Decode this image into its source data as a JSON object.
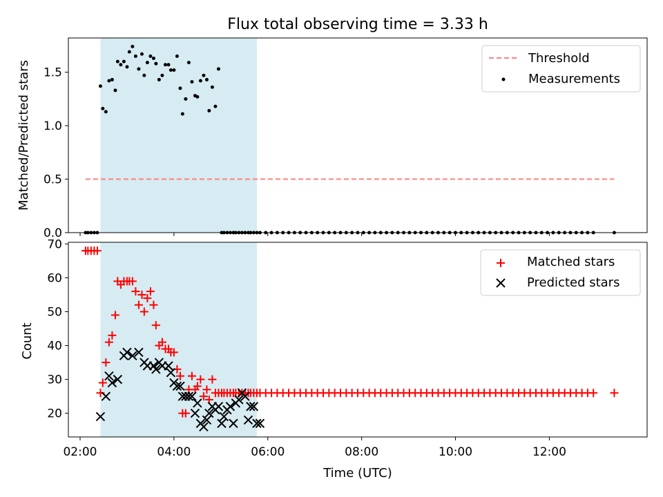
{
  "chart_data": [
    {
      "type": "scatter",
      "title": "Flux total observing time = 3.33 h",
      "xlabel": "",
      "ylabel": "Matched/Predicted stars",
      "xlim": [
        "01:45",
        "14:05"
      ],
      "ylim": [
        0,
        1.82
      ],
      "yticks": [
        0.0,
        0.5,
        1.0,
        1.5
      ],
      "ytick_labels": [
        "0.0",
        "0.5",
        "1.0",
        "1.5"
      ],
      "xticks": [
        "02:00",
        "04:00",
        "06:00",
        "08:00",
        "10:00",
        "12:00"
      ],
      "shaded_span": {
        "start": "02:26",
        "end": "05:46",
        "color": "#add8e6"
      },
      "legend_position": "top-right",
      "threshold": {
        "name": "Threshold",
        "value": 0.5,
        "x_start": "02:07",
        "x_end": "13:23",
        "color": "#ff7f7f",
        "style": "dashed"
      },
      "series": [
        {
          "name": "Measurements",
          "color": "#000000",
          "marker": "dot",
          "x": [
            "02:07",
            "02:10",
            "02:14",
            "02:18",
            "02:22",
            "02:26",
            "02:29",
            "02:33",
            "02:37",
            "02:41",
            "02:45",
            "02:48",
            "02:52",
            "02:56",
            "03:00",
            "03:03",
            "03:07",
            "03:11",
            "03:15",
            "03:19",
            "03:22",
            "03:26",
            "03:30",
            "03:34",
            "03:37",
            "03:41",
            "03:45",
            "03:49",
            "03:53",
            "03:56",
            "04:00",
            "04:04",
            "04:08",
            "04:11",
            "04:15",
            "04:19",
            "04:23",
            "04:27",
            "04:30",
            "04:34",
            "04:38",
            "04:42",
            "04:45",
            "04:49",
            "04:53",
            "04:57",
            "05:01",
            "05:04",
            "05:08",
            "05:12",
            "05:16",
            "05:19",
            "05:23",
            "05:27",
            "05:31",
            "05:35",
            "05:38",
            "05:42",
            "05:46"
          ],
          "y": [
            0,
            0,
            0,
            0,
            0,
            1.37,
            1.16,
            1.13,
            1.42,
            1.43,
            1.33,
            1.6,
            1.57,
            1.6,
            1.55,
            1.69,
            1.74,
            1.65,
            1.53,
            1.67,
            1.47,
            1.59,
            1.65,
            1.63,
            1.58,
            1.43,
            1.47,
            1.57,
            1.57,
            1.52,
            1.52,
            1.65,
            1.35,
            1.11,
            1.25,
            1.59,
            1.41,
            1.28,
            1.27,
            1.42,
            1.47,
            1.43,
            1.14,
            1.36,
            1.18,
            1.53,
            0,
            0,
            0,
            0,
            0,
            0,
            0,
            0,
            0,
            0,
            0,
            0,
            0
          ],
          "x_extra": {
            "from": "05:50",
            "to": "12:58",
            "step_minutes": 7.35,
            "y": 0
          },
          "x_last": "13:23",
          "y_last": 0
        }
      ]
    },
    {
      "type": "scatter",
      "xlabel": "Time (UTC)",
      "ylabel": "Count",
      "xlim": [
        "01:45",
        "14:05"
      ],
      "ylim": [
        13,
        70.5
      ],
      "yticks": [
        20,
        30,
        40,
        50,
        60,
        70
      ],
      "ytick_labels": [
        "20",
        "30",
        "40",
        "50",
        "60",
        "70"
      ],
      "xticks": [
        "02:00",
        "04:00",
        "06:00",
        "08:00",
        "10:00",
        "12:00"
      ],
      "xtick_labels": [
        "02:00",
        "04:00",
        "06:00",
        "08:00",
        "10:00",
        "12:00"
      ],
      "shaded_span": {
        "start": "02:26",
        "end": "05:46",
        "color": "#add8e6"
      },
      "legend_position": "top-right",
      "series": [
        {
          "name": "Matched stars",
          "color": "#ff0000",
          "marker": "plus",
          "x": [
            "02:07",
            "02:10",
            "02:14",
            "02:18",
            "02:22",
            "02:26",
            "02:29",
            "02:33",
            "02:37",
            "02:41",
            "02:45",
            "02:48",
            "02:52",
            "02:56",
            "03:00",
            "03:03",
            "03:07",
            "03:11",
            "03:15",
            "03:19",
            "03:22",
            "03:26",
            "03:30",
            "03:34",
            "03:37",
            "03:41",
            "03:45",
            "03:49",
            "03:53",
            "03:56",
            "04:00",
            "04:04",
            "04:08",
            "04:11",
            "04:15",
            "04:19",
            "04:23",
            "04:27",
            "04:30",
            "04:34",
            "04:38",
            "04:42",
            "04:45",
            "04:49",
            "04:53",
            "04:57",
            "05:01",
            "05:04",
            "05:08",
            "05:12",
            "05:16",
            "05:19",
            "05:23",
            "05:27",
            "05:31",
            "05:35",
            "05:38",
            "05:42",
            "05:46"
          ],
          "y": [
            68,
            68,
            68,
            68,
            68,
            26,
            29,
            35,
            41,
            43,
            49,
            59,
            58,
            59,
            59,
            59,
            59,
            56,
            52,
            55,
            50,
            54,
            56,
            52,
            46,
            40,
            41,
            39,
            39,
            38,
            38,
            33,
            31,
            20,
            20,
            27,
            31,
            27,
            28,
            30,
            25,
            27,
            24,
            30,
            26,
            26,
            26,
            26,
            26,
            26,
            26,
            26,
            26,
            26,
            26,
            26,
            26,
            26,
            26
          ],
          "x_extra": {
            "from": "05:50",
            "to": "12:58",
            "step_minutes": 7.35,
            "y": 26
          },
          "x_last": "13:23",
          "y_last": 26
        },
        {
          "name": "Predicted stars",
          "color": "#000000",
          "marker": "x",
          "x": [
            "02:26",
            "02:33",
            "02:37",
            "02:41",
            "02:48",
            "02:56",
            "03:00",
            "03:07",
            "03:15",
            "03:22",
            "03:26",
            "03:34",
            "03:37",
            "03:41",
            "03:45",
            "03:53",
            "03:56",
            "04:00",
            "04:04",
            "04:08",
            "04:11",
            "04:15",
            "04:19",
            "04:23",
            "04:27",
            "04:30",
            "04:34",
            "04:38",
            "04:42",
            "04:45",
            "04:49",
            "04:53",
            "04:57",
            "05:01",
            "05:04",
            "05:08",
            "05:12",
            "05:16",
            "05:19",
            "05:23",
            "05:27",
            "05:31",
            "05:35",
            "05:38",
            "05:42",
            "05:46",
            "05:50"
          ],
          "y": [
            19,
            25,
            31,
            29,
            30,
            37,
            38,
            37,
            38,
            35,
            34,
            34,
            33,
            35,
            34,
            34,
            32,
            29,
            28,
            28,
            25,
            25,
            25,
            25,
            20,
            23,
            17,
            16,
            18,
            20,
            22,
            21,
            22,
            17,
            19,
            21,
            22,
            17,
            23,
            24,
            26,
            25,
            18,
            22,
            22,
            17,
            17
          ]
        }
      ]
    }
  ]
}
